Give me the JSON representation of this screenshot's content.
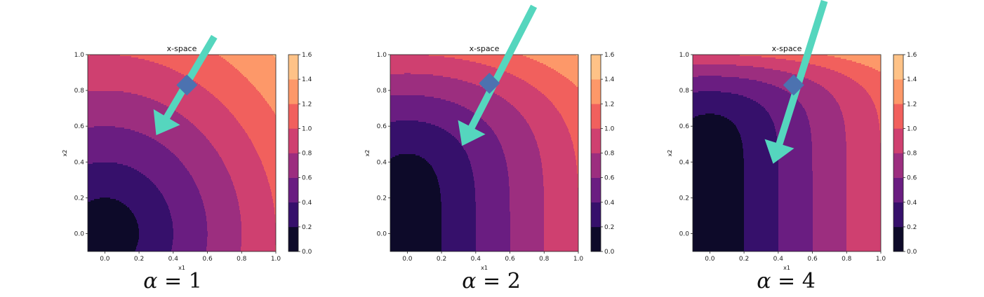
{
  "chart_data": [
    {
      "type": "contour",
      "title": "x-space",
      "xlabel": "x1",
      "ylabel": "x2",
      "xlim": [
        -0.1,
        1.0
      ],
      "ylim": [
        -0.1,
        1.0
      ],
      "xticks": [
        "0.0",
        "0.2",
        "0.4",
        "0.6",
        "0.8",
        "1.0"
      ],
      "yticks": [
        "0.0",
        "0.2",
        "0.4",
        "0.6",
        "0.8",
        "1.0"
      ],
      "levels": [
        0.0,
        0.2,
        0.4,
        0.6,
        0.8,
        1.0,
        1.2,
        1.4,
        1.6
      ],
      "level_labels": [
        "0.0",
        "0.2",
        "0.4",
        "0.6",
        "0.8",
        "1.0",
        "1.2",
        "1.4",
        "1.6"
      ],
      "alpha": 1,
      "caption_symbol": "α",
      "caption_value": "= 1",
      "point": [
        0.48,
        0.83
      ],
      "arrow": {
        "from": [
          0.64,
          1.1
        ],
        "to": [
          0.3,
          0.55
        ]
      }
    },
    {
      "type": "contour",
      "title": "x-space",
      "xlabel": "x1",
      "ylabel": "x2",
      "xlim": [
        -0.1,
        1.0
      ],
      "ylim": [
        -0.1,
        1.0
      ],
      "xticks": [
        "0.0",
        "0.2",
        "0.4",
        "0.6",
        "0.8",
        "1.0"
      ],
      "yticks": [
        "0.0",
        "0.2",
        "0.4",
        "0.6",
        "0.8",
        "1.0"
      ],
      "levels": [
        0.0,
        0.2,
        0.4,
        0.6,
        0.8,
        1.0,
        1.2,
        1.4,
        1.6
      ],
      "level_labels": [
        "0.0",
        "0.2",
        "0.4",
        "0.6",
        "0.8",
        "1.0",
        "1.2",
        "1.4",
        "1.6"
      ],
      "alpha": 2,
      "caption_symbol": "α",
      "caption_value": "= 2",
      "point": [
        0.48,
        0.84
      ],
      "arrow": {
        "from": [
          0.74,
          1.27
        ],
        "to": [
          0.32,
          0.49
        ]
      }
    },
    {
      "type": "contour",
      "title": "x-space",
      "xlabel": "x1",
      "ylabel": "x2",
      "xlim": [
        -0.1,
        1.0
      ],
      "ylim": [
        -0.1,
        1.0
      ],
      "xticks": [
        "0.0",
        "0.2",
        "0.4",
        "0.6",
        "0.8",
        "1.0"
      ],
      "yticks": [
        "0.0",
        "0.2",
        "0.4",
        "0.6",
        "0.8",
        "1.0"
      ],
      "levels": [
        0.0,
        0.2,
        0.4,
        0.6,
        0.8,
        1.0,
        1.2,
        1.4,
        1.6
      ],
      "level_labels": [
        "0.0",
        "0.2",
        "0.4",
        "0.6",
        "0.8",
        "1.0",
        "1.2",
        "1.4",
        "1.6"
      ],
      "alpha": 4,
      "caption_symbol": "α",
      "caption_value": "= 4",
      "point": [
        0.49,
        0.83
      ],
      "arrow": {
        "from": [
          0.67,
          1.3
        ],
        "to": [
          0.37,
          0.39
        ]
      }
    }
  ],
  "colors": {
    "levels": [
      "#0d0a29",
      "#36106b",
      "#6a1d81",
      "#9c2e7f",
      "#cf4070",
      "#f1605d",
      "#fd9869",
      "#fec287"
    ],
    "point": "#4c72b0",
    "arrow": "#55d6be"
  }
}
